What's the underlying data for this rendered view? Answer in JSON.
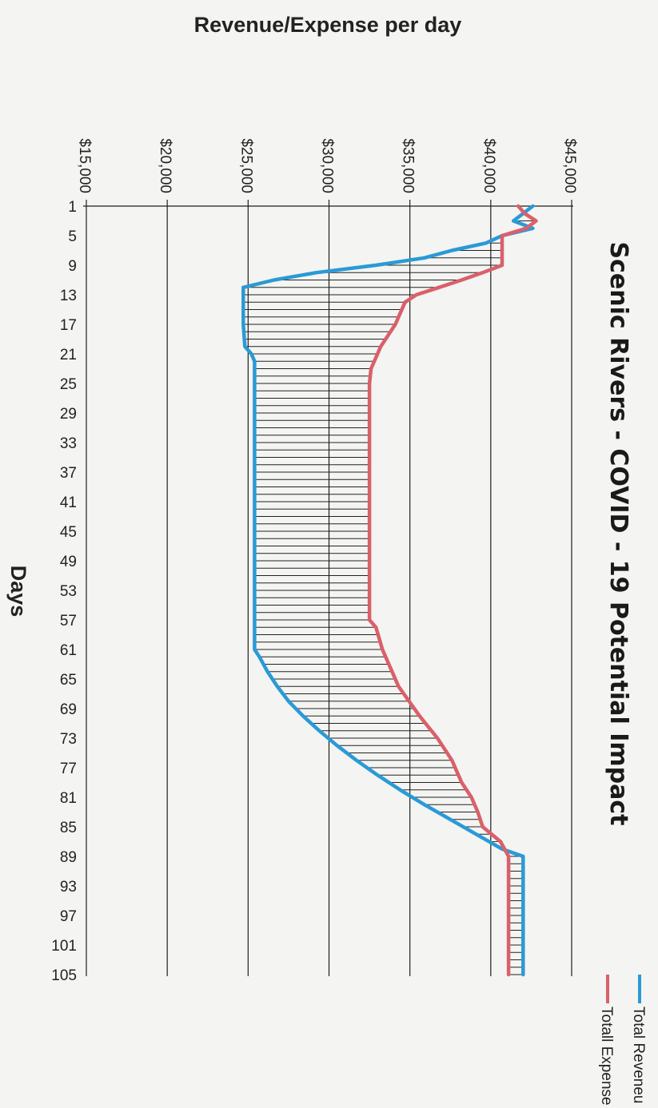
{
  "chart_data": {
    "type": "line",
    "title": "Scenic Rivers - COVID - 19 Potential Impact",
    "xlabel": "Days",
    "ylabel": "Revenue/Expense per day",
    "x_ticks": [
      "1",
      "5",
      "9",
      "13",
      "17",
      "21",
      "25",
      "29",
      "33",
      "37",
      "41",
      "45",
      "49",
      "53",
      "57",
      "61",
      "65",
      "69",
      "73",
      "77",
      "81",
      "85",
      "89",
      "93",
      "97",
      "101",
      "105"
    ],
    "y_ticks": [
      "$15,000",
      "$20,000",
      "$25,000",
      "$30,000",
      "$35,000",
      "$40,000",
      "$45,000"
    ],
    "xlim": [
      1,
      105
    ],
    "ylim": [
      15000,
      45000
    ],
    "grid": "major y gridlines",
    "legend": "right",
    "shading": "horizontal hatch between series",
    "series": [
      {
        "name": "Total Reveneu",
        "color": "#2a9ad6",
        "points": [
          [
            1,
            42600
          ],
          [
            3,
            41400
          ],
          [
            4,
            42600
          ],
          [
            5,
            40700
          ],
          [
            6,
            39700
          ],
          [
            7,
            37600
          ],
          [
            8,
            35900
          ],
          [
            9,
            32900
          ],
          [
            10,
            29200
          ],
          [
            11,
            26600
          ],
          [
            12,
            24700
          ],
          [
            13,
            24700
          ],
          [
            17,
            24700
          ],
          [
            20,
            24800
          ],
          [
            21,
            25200
          ],
          [
            22,
            25400
          ],
          [
            58,
            25400
          ],
          [
            61,
            25400
          ],
          [
            62,
            25700
          ],
          [
            64,
            26200
          ],
          [
            66,
            26800
          ],
          [
            68,
            27500
          ],
          [
            70,
            28400
          ],
          [
            72,
            29400
          ],
          [
            74,
            30500
          ],
          [
            76,
            31700
          ],
          [
            78,
            33000
          ],
          [
            80,
            34400
          ],
          [
            82,
            35900
          ],
          [
            84,
            37500
          ],
          [
            86,
            39100
          ],
          [
            88,
            40700
          ],
          [
            89,
            42000
          ],
          [
            105,
            42000
          ]
        ]
      },
      {
        "name": "Totall Expense",
        "color": "#d9606a",
        "points": [
          [
            1,
            41700
          ],
          [
            2,
            42100
          ],
          [
            3,
            42800
          ],
          [
            4,
            42200
          ],
          [
            5,
            40700
          ],
          [
            9,
            40700
          ],
          [
            10,
            39500
          ],
          [
            11,
            38200
          ],
          [
            12,
            36800
          ],
          [
            13,
            35400
          ],
          [
            14,
            34700
          ],
          [
            17,
            34100
          ],
          [
            20,
            33200
          ],
          [
            23,
            32600
          ],
          [
            25,
            32500
          ],
          [
            57,
            32500
          ],
          [
            58,
            32900
          ],
          [
            61,
            33300
          ],
          [
            66,
            34300
          ],
          [
            70,
            35600
          ],
          [
            73,
            36700
          ],
          [
            76,
            37600
          ],
          [
            79,
            38200
          ],
          [
            81,
            38800
          ],
          [
            83,
            39200
          ],
          [
            85,
            39500
          ],
          [
            87,
            40600
          ],
          [
            89,
            41100
          ],
          [
            105,
            41100
          ]
        ]
      }
    ]
  }
}
